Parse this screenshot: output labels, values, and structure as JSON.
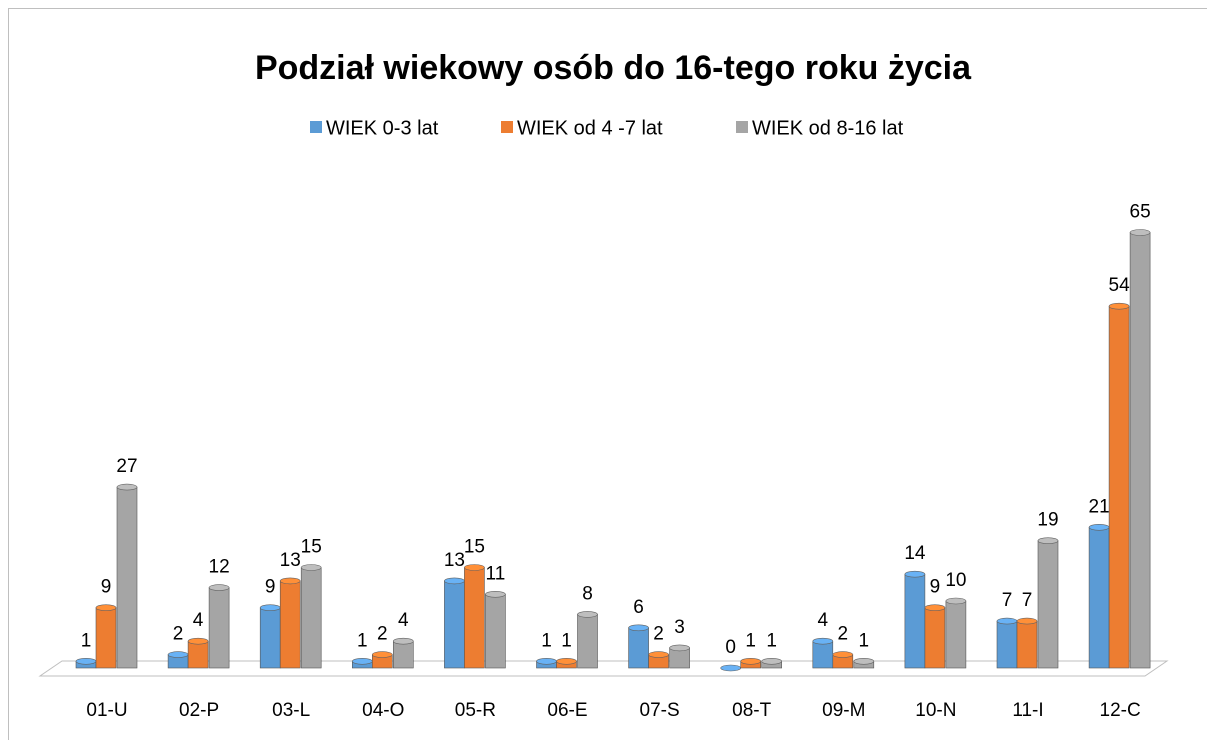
{
  "chart_data": {
    "type": "bar",
    "title": "Podział wiekowy osób do 16-tego roku życia",
    "categories": [
      "01-U",
      "02-P",
      "03-L",
      "04-O",
      "05-R",
      "06-E",
      "07-S",
      "08-T",
      "09-M",
      "10-N",
      "11-I",
      "12-C"
    ],
    "series": [
      {
        "name": "WIEK 0-3 lat",
        "color": "#5b9bd5",
        "values": [
          1,
          2,
          9,
          1,
          13,
          1,
          6,
          0,
          4,
          14,
          7,
          21
        ]
      },
      {
        "name": "WIEK od 4 -7 lat",
        "color": "#ed7d31",
        "values": [
          9,
          4,
          13,
          2,
          15,
          1,
          2,
          1,
          2,
          9,
          7,
          54
        ]
      },
      {
        "name": "WIEK od 8-16 lat",
        "color": "#a5a5a5",
        "values": [
          27,
          12,
          15,
          4,
          11,
          8,
          3,
          1,
          1,
          10,
          19,
          65
        ]
      }
    ],
    "legend": "top"
  }
}
